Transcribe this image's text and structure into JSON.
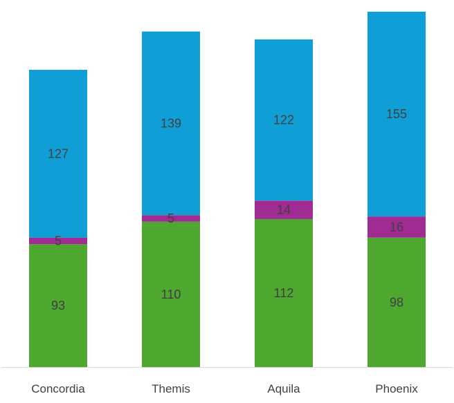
{
  "chart_data": {
    "type": "bar",
    "stacked": true,
    "categories": [
      "Concordia",
      "Themis",
      "Aquila",
      "Phoenix"
    ],
    "series": [
      {
        "values": [
          93,
          110,
          112,
          98
        ],
        "color": "#4ea72e"
      },
      {
        "values": [
          5,
          5,
          14,
          16
        ],
        "color": "#a02b93"
      },
      {
        "values": [
          127,
          139,
          122,
          155
        ],
        "color": "#0f9ed5"
      }
    ],
    "ylim": [
      0,
      270
    ],
    "grid": false,
    "legend": "none",
    "axis_line_color": "#d9d9d9",
    "label_color": "#404040"
  }
}
